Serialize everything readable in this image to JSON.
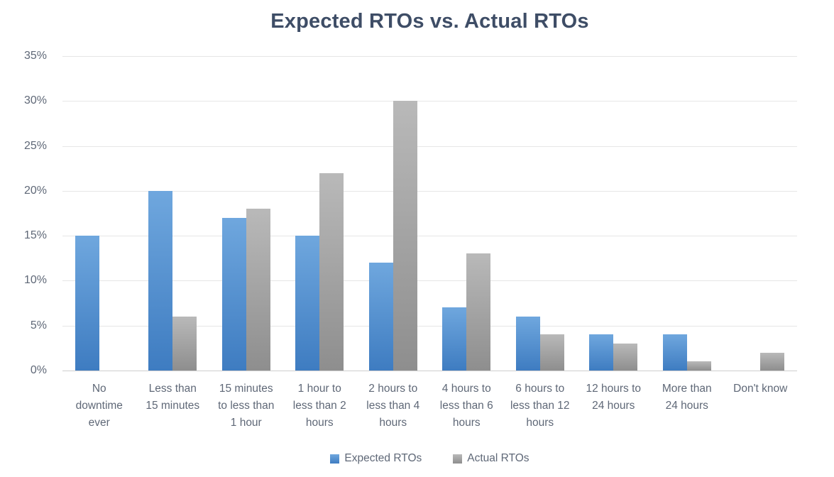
{
  "chart_data": {
    "type": "bar",
    "title": "Expected RTOs vs. Actual RTOs",
    "categories": [
      "No downtime ever",
      "Less than 15 minutes",
      "15 minutes to less than 1 hour",
      "1 hour to less than 2 hours",
      "2 hours to less than 4 hours",
      "4 hours to less than 6 hours",
      "6 hours to less than 12 hours",
      "12 hours to 24 hours",
      "More than 24 hours",
      "Don't know"
    ],
    "category_label_lines": [
      [
        "No",
        "downtime",
        "ever"
      ],
      [
        "Less than",
        "15 minutes"
      ],
      [
        "15 minutes",
        "to less than",
        "1 hour"
      ],
      [
        "1 hour to",
        "less than 2",
        "hours"
      ],
      [
        "2 hours to",
        "less than 4",
        "hours"
      ],
      [
        "4 hours to",
        "less than 6",
        "hours"
      ],
      [
        "6 hours to",
        "less than 12",
        "hours"
      ],
      [
        "12 hours to",
        "24 hours"
      ],
      [
        "More than",
        "24 hours"
      ],
      [
        "Don't know"
      ]
    ],
    "series": [
      {
        "name": "Expected RTOs",
        "values": [
          15,
          20,
          17,
          15,
          12,
          7,
          6,
          4,
          4,
          0
        ],
        "color_top": "#6FA7DE",
        "color_bottom": "#3E7CC1"
      },
      {
        "name": "Actual RTOs",
        "values": [
          0,
          6,
          18,
          22,
          30,
          13,
          4,
          3,
          1,
          2
        ],
        "color_top": "#B9B9B9",
        "color_bottom": "#8E8E8E"
      }
    ],
    "xlabel": "",
    "ylabel": "",
    "ylim": [
      0,
      35
    ],
    "ytick_step": 5,
    "ytick_labels": [
      "0%",
      "5%",
      "10%",
      "15%",
      "20%",
      "25%",
      "30%",
      "35%"
    ],
    "grid": true,
    "legend_position": "bottom"
  },
  "colors": {
    "background": "#FFFFFF",
    "title_text": "#3E4D66",
    "axis_text": "#5F6877",
    "gridline": "#E6E6E6",
    "baseline": "#CFCFCF"
  }
}
